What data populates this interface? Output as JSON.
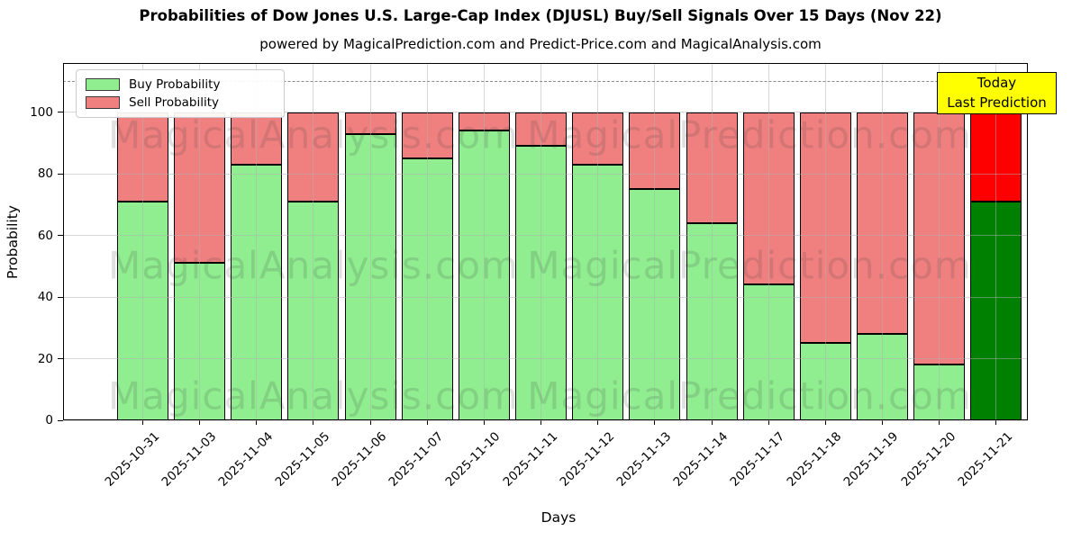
{
  "title": "Probabilities of Dow Jones U.S. Large-Cap Index (DJUSL) Buy/Sell Signals Over 15 Days (Nov 22)",
  "subtitle": "powered by MagicalPrediction.com and Predict-Price.com and MagicalAnalysis.com",
  "legend": {
    "buy_label": "Buy Probability",
    "sell_label": "Sell Probability"
  },
  "annotation_box": {
    "line1": "Today",
    "line2": "Last Prediction",
    "bg_color": "#ffff00"
  },
  "watermarks": [
    "MagicalAnalysis.com",
    "MagicalPrediction.com"
  ],
  "colors": {
    "buy": "#90ee90",
    "sell": "#f08080",
    "today_buy": "#008000",
    "today_sell": "#ff0000",
    "bar_edge": "#000000",
    "dashed_line": "#8a8a8a"
  },
  "chart_data": {
    "type": "bar",
    "stacked": true,
    "title": "Probabilities of Dow Jones U.S. Large-Cap Index (DJUSL) Buy/Sell Signals Over 15 Days (Nov 22)",
    "xlabel": "Days",
    "ylabel": "Probability",
    "categories": [
      "2025-10-31",
      "2025-11-03",
      "2025-11-04",
      "2025-11-05",
      "2025-11-06",
      "2025-11-07",
      "2025-11-10",
      "2025-11-11",
      "2025-11-12",
      "2025-11-13",
      "2025-11-14",
      "2025-11-17",
      "2025-11-18",
      "2025-11-19",
      "2025-11-20",
      "2025-11-21"
    ],
    "series": [
      {
        "name": "Buy Probability",
        "color": "#90ee90",
        "values": [
          71,
          51,
          83,
          71,
          93,
          85,
          94,
          89,
          83,
          75,
          64,
          44,
          25,
          28,
          18,
          71
        ]
      },
      {
        "name": "Sell Probability",
        "color": "#f08080",
        "values": [
          29,
          49,
          17,
          29,
          7,
          15,
          6,
          11,
          17,
          25,
          36,
          56,
          75,
          72,
          82,
          29
        ]
      }
    ],
    "today_bar": {
      "category": "2025-11-21",
      "index": 15,
      "buy_color": "#008000",
      "sell_color": "#ff0000"
    },
    "yticks": [
      0,
      20,
      40,
      60,
      80,
      100
    ],
    "ylim": [
      0,
      116
    ],
    "dashed_line_y": 110,
    "grid": true,
    "legend_position": "upper left"
  }
}
